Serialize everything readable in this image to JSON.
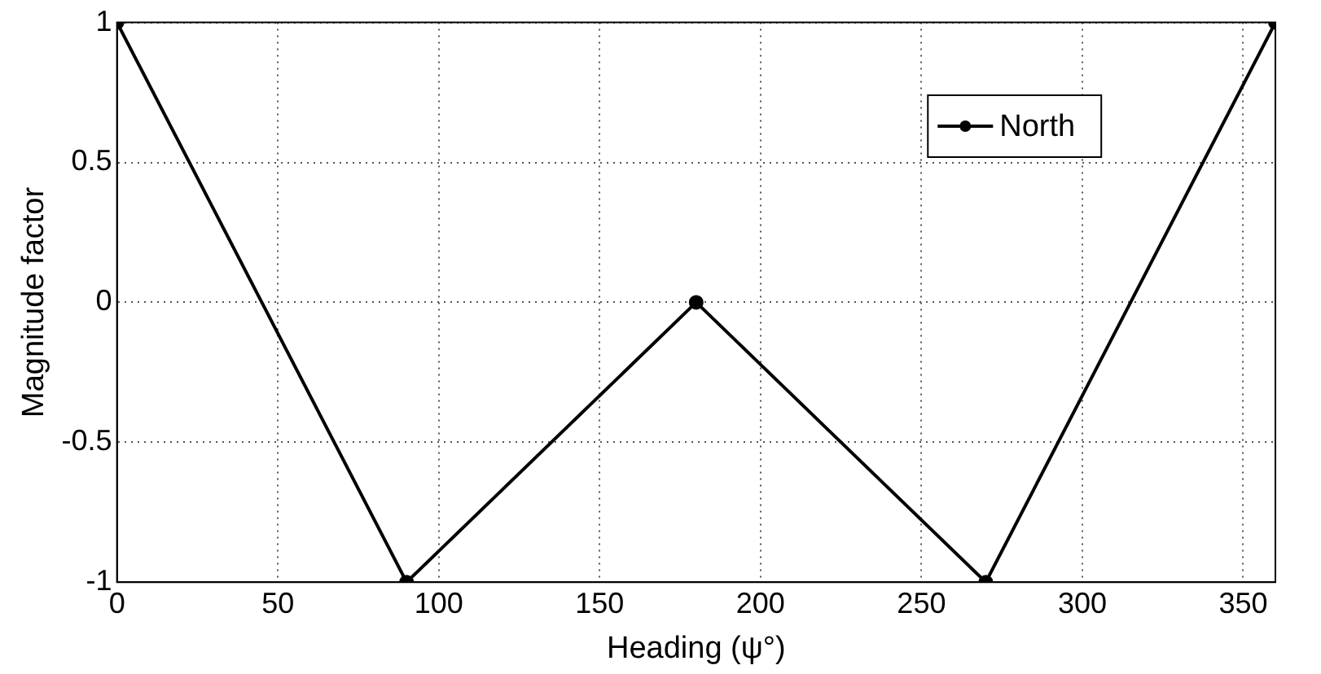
{
  "chart_data": {
    "type": "line",
    "xlabel": "Heading (ψ°)",
    "ylabel": "Magnitude factor",
    "x": [
      0,
      90,
      180,
      270,
      360
    ],
    "series": [
      {
        "name": "North",
        "color": "#000000",
        "values": [
          1,
          -1,
          0,
          -1,
          1
        ]
      }
    ],
    "xlim": [
      0,
      360
    ],
    "xticks": [
      0,
      50,
      100,
      150,
      200,
      250,
      300,
      350
    ],
    "ylim": [
      -1,
      1
    ],
    "yticks": [
      -1,
      -0.5,
      0,
      0.5,
      1
    ],
    "grid": true,
    "legend": "top right",
    "marker": "circle",
    "line_style": "solid"
  }
}
